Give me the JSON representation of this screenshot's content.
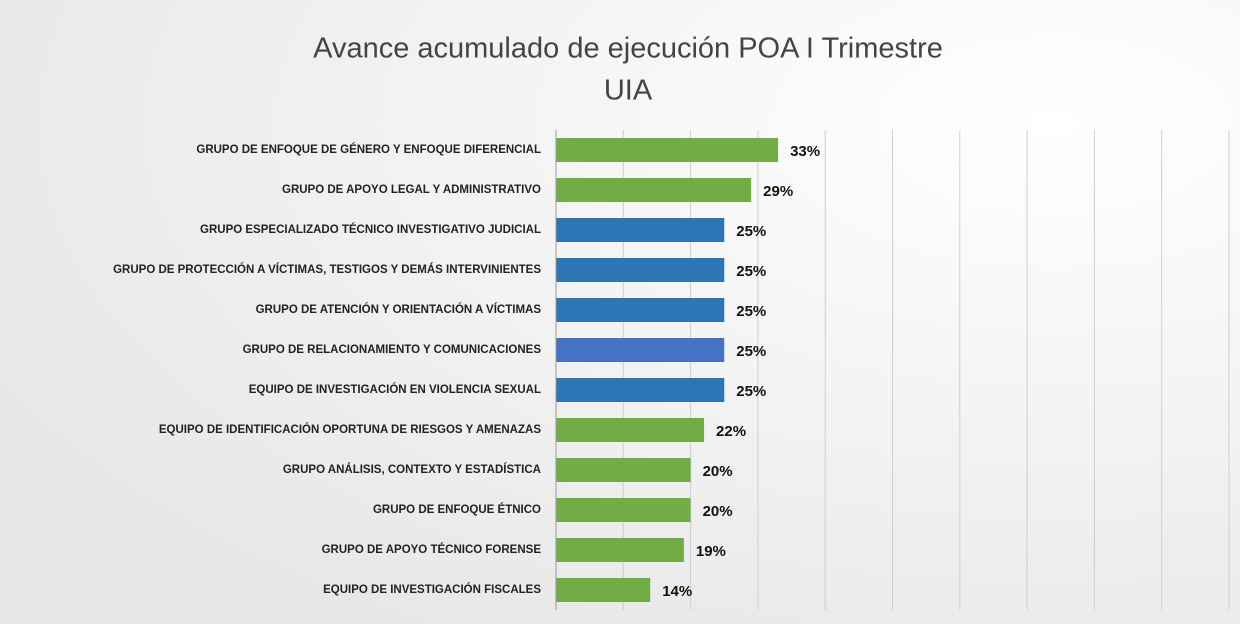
{
  "chart_data": {
    "type": "bar",
    "orientation": "horizontal",
    "title": [
      "Avance acumulado de ejecución POA I Trimestre",
      "UIA"
    ],
    "categories": [
      "GRUPO DE ENFOQUE DE GÉNERO Y ENFOQUE DIFERENCIAL",
      "GRUPO DE APOYO LEGAL Y ADMINISTRATIVO",
      "GRUPO ESPECIALIZADO TÉCNICO INVESTIGATIVO JUDICIAL",
      "GRUPO DE PROTECCIÓN A VÍCTIMAS, TESTIGOS Y DEMÁS INTERVINIENTES",
      "GRUPO DE ATENCIÓN Y ORIENTACIÓN A VÍCTIMAS",
      "GRUPO DE RELACIONAMIENTO Y COMUNICACIONES",
      "EQUIPO DE INVESTIGACIÓN EN VIOLENCIA SEXUAL",
      "EQUIPO DE IDENTIFICACIÓN OPORTUNA DE RIESGOS Y AMENAZAS",
      "GRUPO ANÁLISIS, CONTEXTO Y ESTADÍSTICA",
      "GRUPO DE ENFOQUE ÉTNICO",
      "GRUPO DE APOYO TÉCNICO FORENSE",
      "EQUIPO DE INVESTIGACIÓN FISCALES"
    ],
    "values": [
      33,
      29,
      25,
      25,
      25,
      25,
      25,
      22,
      20,
      20,
      19,
      14
    ],
    "value_labels": [
      "33%",
      "29%",
      "25%",
      "25%",
      "25%",
      "25%",
      "25%",
      "22%",
      "20%",
      "20%",
      "19%",
      "14%"
    ],
    "colors": [
      "#70ad47",
      "#70ad47",
      "#2e75b6",
      "#2e75b6",
      "#2e75b6",
      "#4472c4",
      "#2e75b6",
      "#70ad47",
      "#70ad47",
      "#70ad47",
      "#70ad47",
      "#70ad47"
    ],
    "xlim": [
      0,
      100
    ],
    "xticks": [
      0,
      10,
      20,
      30,
      40,
      50,
      60,
      70,
      80,
      90,
      100
    ],
    "grid": true
  }
}
